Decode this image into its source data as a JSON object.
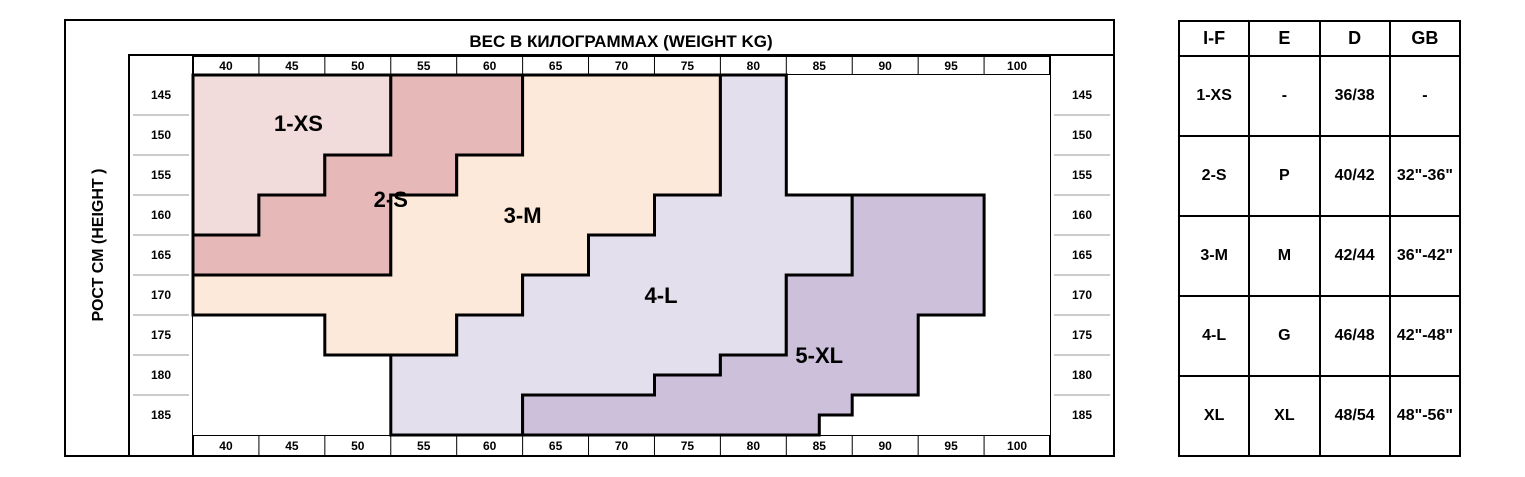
{
  "chart": {
    "title": "ВЕС В КИЛОГРАММАХ (WEIGHT KG)",
    "y_label": "РОСТ  СМ  (HEIGHT )",
    "weights": [
      "40",
      "45",
      "50",
      "55",
      "60",
      "65",
      "70",
      "75",
      "80",
      "85",
      "90",
      "95",
      "100"
    ],
    "heights": [
      "145",
      "150",
      "155",
      "160",
      "165",
      "170",
      "175",
      "180",
      "185"
    ]
  },
  "chart_data": {
    "type": "size-chart",
    "x_unit": "kg",
    "y_unit": "cm",
    "zones": [
      {
        "name": "1-XS",
        "color": "#f2dcdb",
        "outline": [
          [
            37.5,
            142.5
          ],
          [
            52.5,
            142.5
          ],
          [
            52.5,
            152.5
          ],
          [
            47.5,
            152.5
          ],
          [
            47.5,
            157.5
          ],
          [
            42.5,
            157.5
          ],
          [
            42.5,
            162.5
          ],
          [
            37.5,
            162.5
          ]
        ]
      },
      {
        "name": "2-S",
        "color": "#e6b9b8",
        "outline": [
          [
            52.5,
            142.5
          ],
          [
            62.5,
            142.5
          ],
          [
            62.5,
            152.5
          ],
          [
            57.5,
            152.5
          ],
          [
            57.5,
            157.5
          ],
          [
            52.5,
            157.5
          ],
          [
            52.5,
            167.5
          ],
          [
            37.5,
            167.5
          ],
          [
            37.5,
            162.5
          ],
          [
            42.5,
            162.5
          ],
          [
            42.5,
            157.5
          ],
          [
            47.5,
            157.5
          ],
          [
            47.5,
            152.5
          ],
          [
            52.5,
            152.5
          ]
        ]
      },
      {
        "name": "3-M",
        "color": "#fde9d9",
        "outline": [
          [
            62.5,
            142.5
          ],
          [
            77.5,
            142.5
          ],
          [
            77.5,
            157.5
          ],
          [
            72.5,
            157.5
          ],
          [
            72.5,
            162.5
          ],
          [
            67.5,
            162.5
          ],
          [
            67.5,
            167.5
          ],
          [
            62.5,
            167.5
          ],
          [
            62.5,
            172.5
          ],
          [
            57.5,
            172.5
          ],
          [
            57.5,
            177.5
          ],
          [
            47.5,
            177.5
          ],
          [
            47.5,
            172.5
          ],
          [
            37.5,
            172.5
          ],
          [
            37.5,
            167.5
          ],
          [
            52.5,
            167.5
          ],
          [
            52.5,
            157.5
          ],
          [
            57.5,
            157.5
          ],
          [
            57.5,
            152.5
          ],
          [
            62.5,
            152.5
          ]
        ]
      },
      {
        "name": "4-L",
        "color": "#e4dfec",
        "outline": [
          [
            77.5,
            142.5
          ],
          [
            82.5,
            142.5
          ],
          [
            82.5,
            157.5
          ],
          [
            87.5,
            157.5
          ],
          [
            87.5,
            167.5
          ],
          [
            82.5,
            167.5
          ],
          [
            82.5,
            177.5
          ],
          [
            77.5,
            177.5
          ],
          [
            77.5,
            180
          ],
          [
            72.5,
            180
          ],
          [
            72.5,
            182.5
          ],
          [
            62.5,
            182.5
          ],
          [
            62.5,
            187.5
          ],
          [
            52.5,
            187.5
          ],
          [
            52.5,
            177.5
          ],
          [
            57.5,
            177.5
          ],
          [
            57.5,
            172.5
          ],
          [
            62.5,
            172.5
          ],
          [
            62.5,
            167.5
          ],
          [
            67.5,
            167.5
          ],
          [
            67.5,
            162.5
          ],
          [
            72.5,
            162.5
          ],
          [
            72.5,
            157.5
          ],
          [
            77.5,
            157.5
          ]
        ]
      },
      {
        "name": "5-XL",
        "color": "#ccc0da",
        "outline": [
          [
            87.5,
            157.5
          ],
          [
            97.5,
            157.5
          ],
          [
            97.5,
            172.5
          ],
          [
            92.5,
            172.5
          ],
          [
            92.5,
            182.5
          ],
          [
            87.5,
            182.5
          ],
          [
            87.5,
            185
          ],
          [
            85,
            185
          ],
          [
            85,
            187.5
          ],
          [
            62.5,
            187.5
          ],
          [
            62.5,
            182.5
          ],
          [
            72.5,
            182.5
          ],
          [
            72.5,
            180
          ],
          [
            77.5,
            180
          ],
          [
            77.5,
            177.5
          ],
          [
            82.5,
            177.5
          ],
          [
            82.5,
            167.5
          ],
          [
            87.5,
            167.5
          ]
        ]
      }
    ],
    "labels": [
      {
        "text": "1-XS",
        "x": 45.5,
        "y": 148.5
      },
      {
        "text": "2-S",
        "x": 52.5,
        "y": 158
      },
      {
        "text": "3-M",
        "x": 62.5,
        "y": 160
      },
      {
        "text": "4-L",
        "x": 73,
        "y": 170
      },
      {
        "text": "5-XL",
        "x": 85,
        "y": 177.5
      }
    ]
  },
  "size_table": {
    "headers": [
      "I-F",
      "E",
      "D",
      "GB"
    ],
    "rows": [
      [
        "1-XS",
        "-",
        "36/38",
        "-"
      ],
      [
        "2-S",
        "P",
        "40/42",
        "32\"-36\""
      ],
      [
        "3-M",
        "M",
        "42/44",
        "36\"-42\""
      ],
      [
        "4-L",
        "G",
        "46/48",
        "42\"-48\""
      ],
      [
        "XL",
        "XL",
        "48/54",
        "48\"-56\""
      ]
    ]
  }
}
